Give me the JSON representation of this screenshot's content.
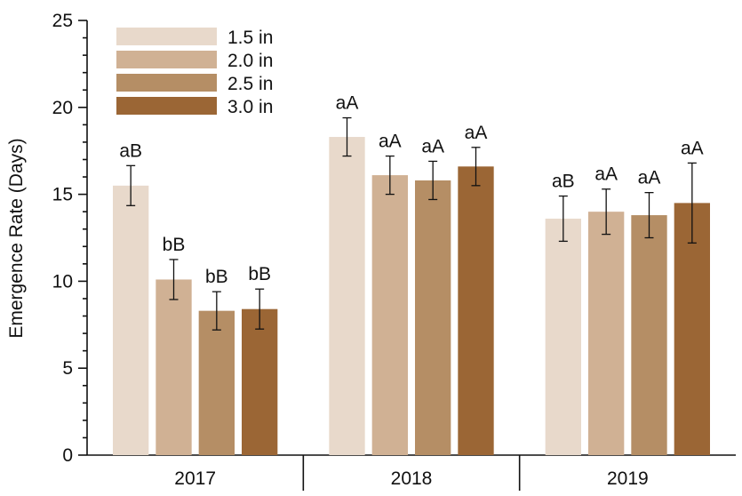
{
  "chart_data": {
    "type": "bar",
    "ylabel": "Emergence Rate (Days)",
    "ylim": [
      0,
      25
    ],
    "yticks": [
      "0",
      "5",
      "10",
      "15",
      "20",
      "25"
    ],
    "categories": [
      "2017",
      "2018",
      "2019"
    ],
    "legend_position": "top-left",
    "series": [
      {
        "name": "1.5 in",
        "color": "#e8d9cb",
        "values": [
          15.5,
          18.3,
          13.6
        ],
        "errors": [
          1.15,
          1.1,
          1.3
        ],
        "labels": [
          "aB",
          "aA",
          "aB"
        ]
      },
      {
        "name": "2.0 in",
        "color": "#d0b194",
        "values": [
          10.1,
          16.1,
          14.0
        ],
        "errors": [
          1.15,
          1.1,
          1.3
        ],
        "labels": [
          "bB",
          "aA",
          "aA"
        ]
      },
      {
        "name": "2.5 in",
        "color": "#b58e65",
        "values": [
          8.3,
          15.8,
          13.8
        ],
        "errors": [
          1.1,
          1.1,
          1.3
        ],
        "labels": [
          "bB",
          "aA",
          "aA"
        ]
      },
      {
        "name": "3.0 in",
        "color": "#9b6635",
        "values": [
          8.4,
          16.6,
          14.5
        ],
        "errors": [
          1.15,
          1.1,
          2.3
        ],
        "labels": [
          "bB",
          "aA",
          "aA"
        ]
      }
    ]
  }
}
